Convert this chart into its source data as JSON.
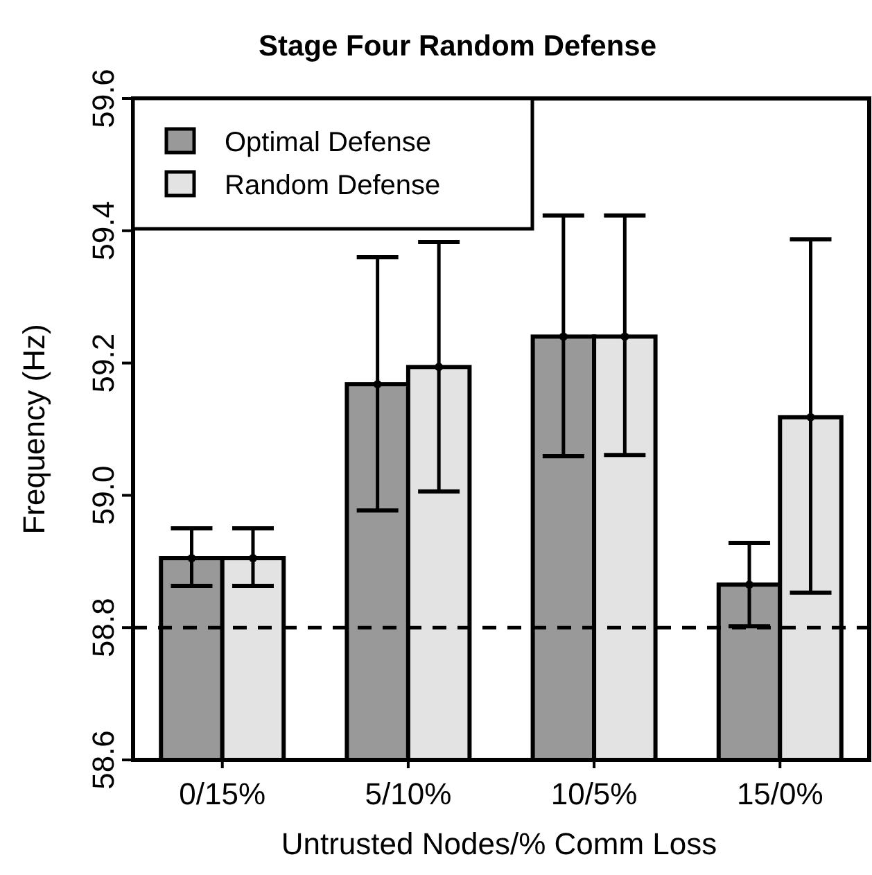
{
  "chart_data": {
    "type": "bar",
    "title": "Stage Four Random Defense",
    "xlabel": "Untrusted Nodes/% Comm Loss",
    "ylabel": "Frequency (Hz)",
    "categories": [
      "0/15%",
      "5/10%",
      "10/5%",
      "15/0%"
    ],
    "series": [
      {
        "name": "Optimal Defense",
        "color": "#999999",
        "values": [
          58.905,
          59.168,
          59.24,
          58.865
        ],
        "errors": [
          [
            58.863,
            58.95
          ],
          [
            58.977,
            59.36
          ],
          [
            59.059,
            59.423
          ],
          [
            58.802,
            58.928
          ]
        ]
      },
      {
        "name": "Random Defense",
        "color": "#e3e3e3",
        "values": [
          58.905,
          59.194,
          59.24,
          59.118
        ],
        "errors": [
          [
            58.863,
            58.95
          ],
          [
            59.006,
            59.383
          ],
          [
            59.061,
            59.423
          ],
          [
            58.853,
            59.387
          ]
        ]
      }
    ],
    "ylim": [
      58.6,
      59.6
    ],
    "yticks": [
      {
        "value": 58.6,
        "label": "58.6"
      },
      {
        "value": 58.8,
        "label": "58.8"
      },
      {
        "value": 59.0,
        "label": "59.0"
      },
      {
        "value": 59.2,
        "label": "59.2"
      },
      {
        "value": 59.4,
        "label": "59.4"
      },
      {
        "value": 59.6,
        "label": "59.6"
      }
    ],
    "ref_lines": [
      {
        "axis": "y",
        "value": 58.8,
        "line_style": "dashed"
      }
    ],
    "legend": "top left",
    "grid": false
  }
}
